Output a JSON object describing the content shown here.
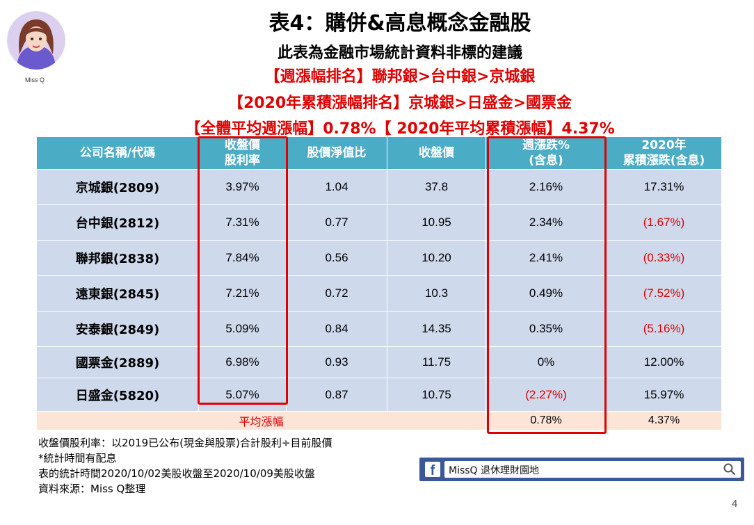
{
  "avatar": {
    "caption": "Miss Q"
  },
  "title": "表4：購併&高息概念金融股",
  "subtitle": "此表為金融市場統計資料非標的建議",
  "rank_weekly": "【週漲幅排名】聯邦銀>台中銀>京城銀",
  "rank_2020": "【2020年累積漲幅排名】京城銀>日盛金>國票金",
  "avg_summary": "【全體平均週漲幅】0.78%【 2020年平均累積漲幅】4.37%",
  "table": {
    "headers": [
      [
        "公司名稱/代碼"
      ],
      [
        "收盤價",
        "股利率"
      ],
      [
        "股價淨值比"
      ],
      [
        "收盤價"
      ],
      [
        "週漲跌%",
        "(含息)"
      ],
      [
        "2020年",
        "累積漲跌(含息)"
      ]
    ],
    "rows": [
      [
        "京城銀(2809)",
        "3.97%",
        "1.04",
        "37.8",
        "2.16%",
        "17.31%"
      ],
      [
        "台中銀(2812)",
        "7.31%",
        "0.77",
        "10.95",
        "2.34%",
        "(1.67%)"
      ],
      [
        "聯邦銀(2838)",
        "7.84%",
        "0.56",
        "10.20",
        "2.41%",
        "(0.33%)"
      ],
      [
        "遠東銀(2845)",
        "7.21%",
        "0.72",
        "10.3",
        "0.49%",
        "(7.52%)"
      ],
      [
        "安泰銀(2849)",
        "5.09%",
        "0.84",
        "14.35",
        "0.35%",
        "(5.16%)"
      ],
      [
        "國票金(2889)",
        "6.98%",
        "0.93",
        "11.75",
        "0%",
        "12.00%"
      ],
      [
        "日盛金(5820)",
        "5.07%",
        "0.87",
        "10.75",
        "(2.27%)",
        "15.97%"
      ]
    ],
    "footer": {
      "label": "平均漲幅",
      "weekly": "0.78%",
      "ytd": "4.37%"
    }
  },
  "notes": [
    "收盤價股利率：以2019已公布(現金與股票)合計股利÷目前股價",
    "*統計時間有配息",
    "表的統計時間2020/10/02美股收盤至2020/10/09美股收盤",
    "資料來源：Miss Q整理"
  ],
  "facebook": {
    "logo": "f",
    "text": "MissQ 退休理財園地",
    "icon": "search-icon"
  },
  "page_number": "4",
  "colors": {
    "header": "#4bacc6",
    "row": "#cfd9ec",
    "footer": "#fce4d6",
    "accent": "#e00000",
    "facebook": "#3b5998"
  }
}
